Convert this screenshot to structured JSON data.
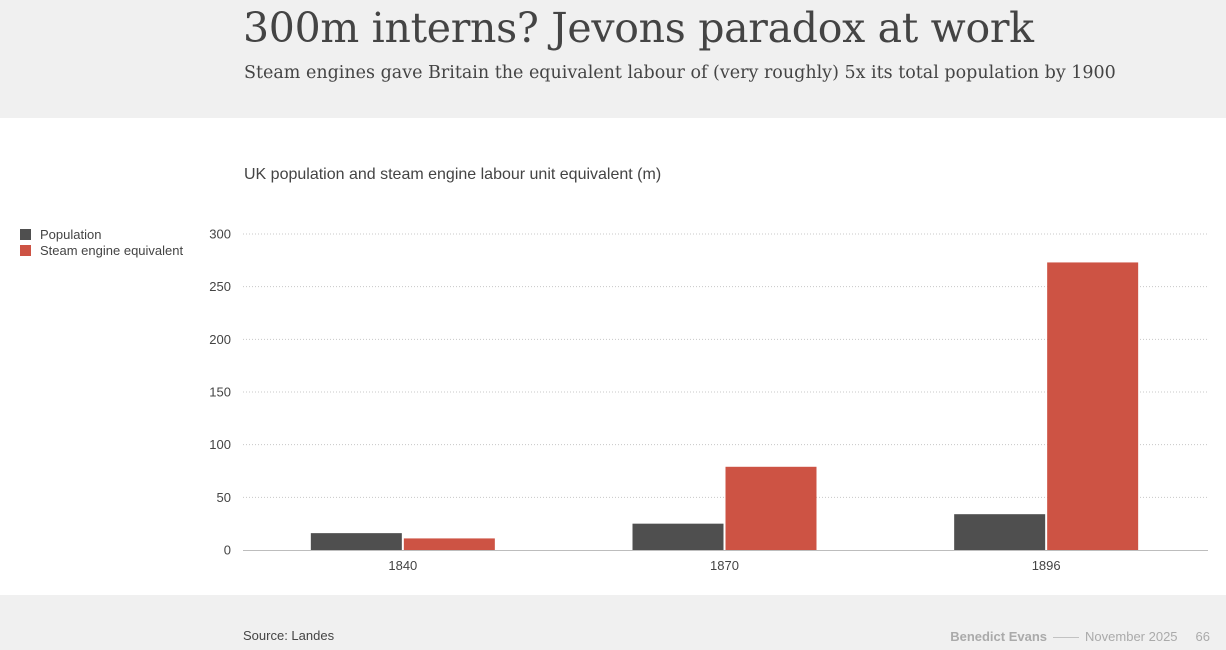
{
  "header": {
    "title": "300m interns? Jevons paradox at work",
    "subtitle": "Steam engines gave Britain the equivalent labour of (very roughly) 5x its total population by 1900"
  },
  "chart_data": {
    "type": "bar",
    "title": "UK population and steam engine labour unit equivalent (m)",
    "categories": [
      "1840",
      "1870",
      "1896"
    ],
    "series": [
      {
        "name": "Population",
        "color": "#4f4f4f",
        "values": [
          16,
          25,
          34
        ]
      },
      {
        "name": "Steam engine equivalent",
        "color": "#cd5344",
        "values": [
          11,
          79,
          273
        ]
      }
    ],
    "ylim": [
      0,
      300
    ],
    "yticks": [
      0,
      50,
      100,
      150,
      200,
      250,
      300
    ],
    "grid": true,
    "legend_position": "left"
  },
  "footer": {
    "source": "Source: Landes",
    "author": "Benedict Evans",
    "separator": "——",
    "date": "November 2025",
    "page": "66"
  }
}
